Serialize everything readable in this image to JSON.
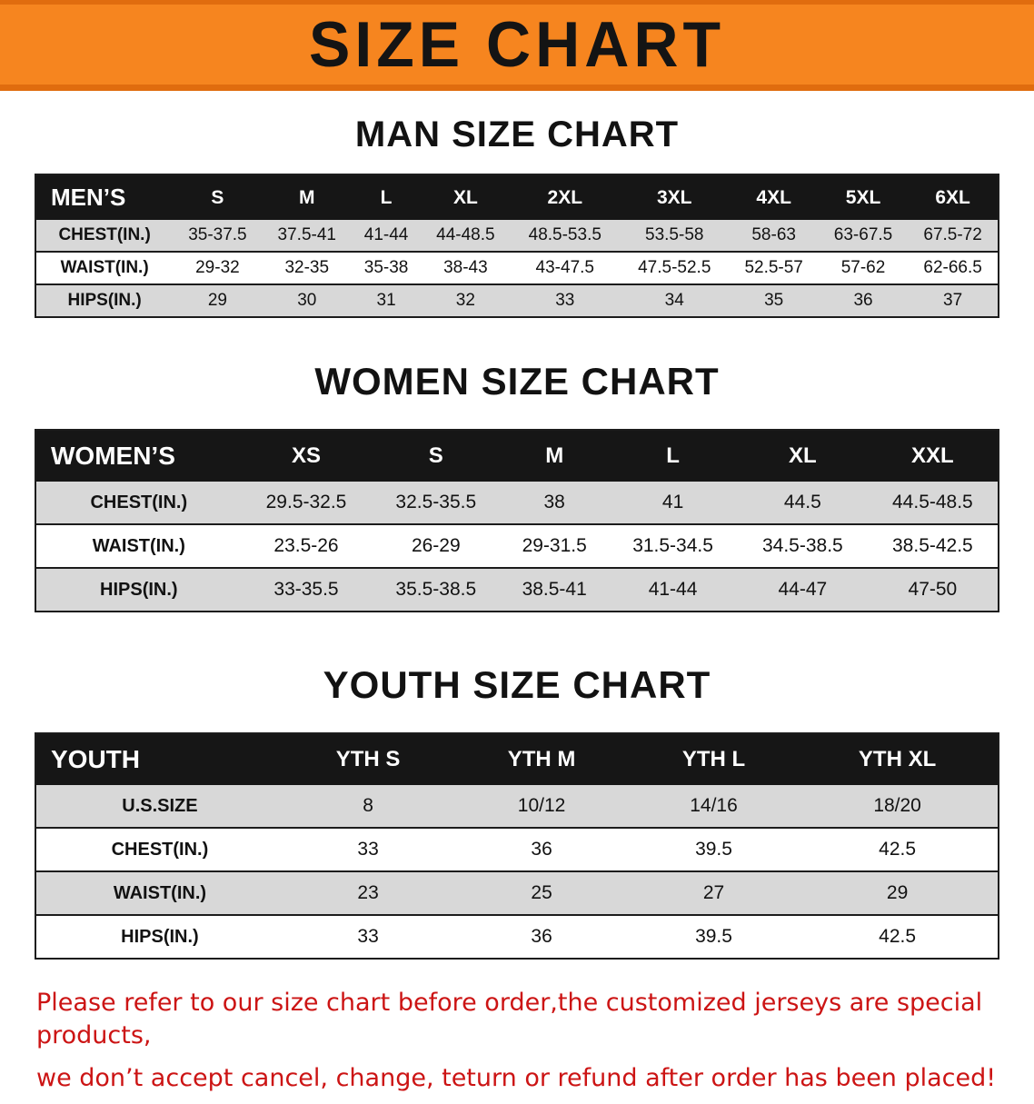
{
  "banner": {
    "title": "SIZE CHART",
    "bg_color": "#f6851f",
    "edge_color": "#e06c0e"
  },
  "sections": {
    "men": {
      "heading": "MAN SIZE CHART",
      "table": {
        "header": [
          "MEN’S",
          "S",
          "M",
          "L",
          "XL",
          "2XL",
          "3XL",
          "4XL",
          "5XL",
          "6XL"
        ],
        "rows": [
          [
            "CHEST(IN.)",
            "35-37.5",
            "37.5-41",
            "41-44",
            "44-48.5",
            "48.5-53.5",
            "53.5-58",
            "58-63",
            "63-67.5",
            "67.5-72"
          ],
          [
            "WAIST(IN.)",
            "29-32",
            "32-35",
            "35-38",
            "38-43",
            "43-47.5",
            "47.5-52.5",
            "52.5-57",
            "57-62",
            "62-66.5"
          ],
          [
            "HIPS(IN.)",
            "29",
            "30",
            "31",
            "32",
            "33",
            "34",
            "35",
            "36",
            "37"
          ]
        ]
      }
    },
    "women": {
      "heading": "WOMEN SIZE CHART",
      "table": {
        "header": [
          "WOMEN’S",
          "XS",
          "S",
          "M",
          "L",
          "XL",
          "XXL"
        ],
        "rows": [
          [
            "CHEST(IN.)",
            "29.5-32.5",
            "32.5-35.5",
            "38",
            "41",
            "44.5",
            "44.5-48.5"
          ],
          [
            "WAIST(IN.)",
            "23.5-26",
            "26-29",
            "29-31.5",
            "31.5-34.5",
            "34.5-38.5",
            "38.5-42.5"
          ],
          [
            "HIPS(IN.)",
            "33-35.5",
            "35.5-38.5",
            "38.5-41",
            "41-44",
            "44-47",
            "47-50"
          ]
        ]
      }
    },
    "youth": {
      "heading": "YOUTH SIZE CHART",
      "table": {
        "header": [
          "YOUTH",
          "YTH S",
          "YTH M",
          "YTH L",
          "YTH XL"
        ],
        "rows": [
          [
            "U.S.SIZE",
            "8",
            "10/12",
            "14/16",
            "18/20"
          ],
          [
            "CHEST(IN.)",
            "33",
            "36",
            "39.5",
            "42.5"
          ],
          [
            "WAIST(IN.)",
            "23",
            "25",
            "27",
            "29"
          ],
          [
            "HIPS(IN.)",
            "33",
            "36",
            "39.5",
            "42.5"
          ]
        ]
      }
    }
  },
  "footer": {
    "line1": "Please refer to our size chart before order,the customized jerseys are special products,",
    "line2": "we don’t accept cancel, change, teturn or refund after order has been placed!",
    "text_color": "#cc1414"
  },
  "header_bar_color": "#161616",
  "row_stripe_color": "#d8d8d8"
}
